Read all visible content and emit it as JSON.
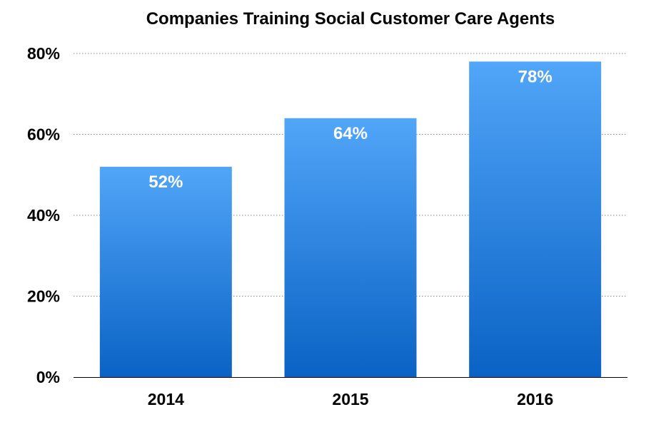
{
  "chart_data": {
    "type": "bar",
    "title": "Companies Training Social Customer Care Agents",
    "xlabel": "",
    "ylabel": "",
    "categories": [
      "2014",
      "2015",
      "2016"
    ],
    "values": [
      52,
      64,
      78
    ],
    "value_labels": [
      "52%",
      "64%",
      "78%"
    ],
    "ylim": [
      0,
      80
    ],
    "yticks": [
      0,
      20,
      40,
      60,
      80
    ],
    "ytick_labels": [
      "0%",
      "20%",
      "40%",
      "60%",
      "80%"
    ],
    "grid": true,
    "legend": false,
    "colors": {
      "bar_top": "#51a6f8",
      "bar_bottom": "#0a62c4",
      "bar_label": "#ffffff",
      "grid": "#8a8a8a"
    }
  }
}
